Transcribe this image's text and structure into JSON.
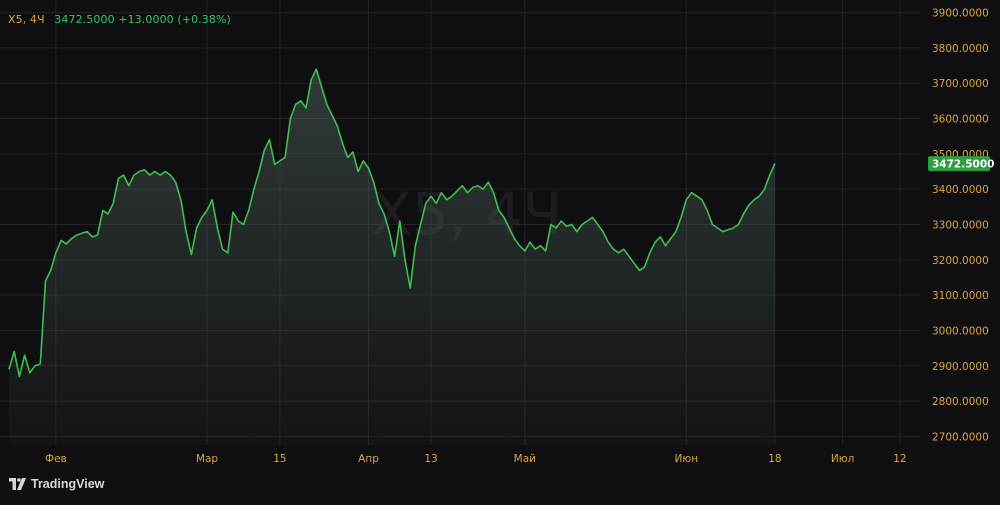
{
  "legend": {
    "symbol": "X5, 4Ч",
    "values": "3472.5000  +13.0000 (+0.38%)"
  },
  "watermark": "X5, 4Ч",
  "brand": {
    "name": "TradingView",
    "icon": "tradingview-logo-icon"
  },
  "colors": {
    "background": "#0f0f11",
    "line": "#3fbf4d",
    "price_label_bg": "#2e9e3e",
    "price_axis_text": "#d9a640",
    "time_axis_text": "#d9a640",
    "grid": "#222227",
    "symbol_text": "#d8a33a",
    "change_text": "#34c759"
  },
  "chart_data": {
    "type": "area",
    "interval": "4Ч",
    "last_price_label": "3472.5000",
    "ylim": [
      2670,
      3930
    ],
    "y_ticks": [
      2700,
      2800,
      2900,
      3000,
      3100,
      3200,
      3300,
      3400,
      3500,
      3600,
      3700,
      3800,
      3900
    ],
    "y_tick_labels": [
      "2700.0000",
      "2800.0000",
      "2900.0000",
      "3000.0000",
      "3100.0000",
      "3200.0000",
      "3300.0000",
      "3400.0000",
      "3500.0000",
      "3600.0000",
      "3700.0000",
      "3800.0000",
      "3900.0000"
    ],
    "x_domain": [
      "2024-01-23",
      "2024-07-17"
    ],
    "x_ticks": [
      {
        "date": "2024-02-01",
        "label": "Фев"
      },
      {
        "date": "2024-03-01",
        "label": "Мар"
      },
      {
        "date": "2024-03-15",
        "label": "15"
      },
      {
        "date": "2024-04-01",
        "label": "Апр"
      },
      {
        "date": "2024-04-13",
        "label": "13"
      },
      {
        "date": "2024-05-01",
        "label": "Май"
      },
      {
        "date": "2024-06-01",
        "label": "Июн"
      },
      {
        "date": "2024-06-18",
        "label": "18"
      },
      {
        "date": "2024-07-01",
        "label": "Июл"
      },
      {
        "date": "2024-07-12",
        "label": "12"
      }
    ],
    "grid": true,
    "series": [
      {
        "points": [
          [
            "2024-01-23",
            2890
          ],
          [
            "2024-01-24",
            2940
          ],
          [
            "2024-01-25",
            2870
          ],
          [
            "2024-01-26",
            2930
          ],
          [
            "2024-01-27",
            2880
          ],
          [
            "2024-01-28",
            2900
          ],
          [
            "2024-01-29",
            2905
          ],
          [
            "2024-01-30",
            3140
          ],
          [
            "2024-01-31",
            3170
          ],
          [
            "2024-02-01",
            3220
          ],
          [
            "2024-02-02",
            3255
          ],
          [
            "2024-02-03",
            3245
          ],
          [
            "2024-02-04",
            3260
          ],
          [
            "2024-02-05",
            3270
          ],
          [
            "2024-02-06",
            3275
          ],
          [
            "2024-02-07",
            3280
          ],
          [
            "2024-02-08",
            3265
          ],
          [
            "2024-02-09",
            3270
          ],
          [
            "2024-02-10",
            3340
          ],
          [
            "2024-02-11",
            3330
          ],
          [
            "2024-02-12",
            3360
          ],
          [
            "2024-02-13",
            3430
          ],
          [
            "2024-02-14",
            3440
          ],
          [
            "2024-02-15",
            3410
          ],
          [
            "2024-02-16",
            3440
          ],
          [
            "2024-02-17",
            3450
          ],
          [
            "2024-02-18",
            3455
          ],
          [
            "2024-02-19",
            3440
          ],
          [
            "2024-02-20",
            3450
          ],
          [
            "2024-02-21",
            3440
          ],
          [
            "2024-02-22",
            3450
          ],
          [
            "2024-02-23",
            3440
          ],
          [
            "2024-02-24",
            3420
          ],
          [
            "2024-02-25",
            3370
          ],
          [
            "2024-02-26",
            3280
          ],
          [
            "2024-02-27",
            3215
          ],
          [
            "2024-02-28",
            3290
          ],
          [
            "2024-02-29",
            3320
          ],
          [
            "2024-03-01",
            3340
          ],
          [
            "2024-03-02",
            3370
          ],
          [
            "2024-03-03",
            3290
          ],
          [
            "2024-03-04",
            3230
          ],
          [
            "2024-03-05",
            3220
          ],
          [
            "2024-03-06",
            3335
          ],
          [
            "2024-03-07",
            3310
          ],
          [
            "2024-03-08",
            3300
          ],
          [
            "2024-03-09",
            3340
          ],
          [
            "2024-03-10",
            3400
          ],
          [
            "2024-03-11",
            3450
          ],
          [
            "2024-03-12",
            3510
          ],
          [
            "2024-03-13",
            3540
          ],
          [
            "2024-03-14",
            3470
          ],
          [
            "2024-03-15",
            3480
          ],
          [
            "2024-03-16",
            3490
          ],
          [
            "2024-03-17",
            3600
          ],
          [
            "2024-03-18",
            3640
          ],
          [
            "2024-03-19",
            3650
          ],
          [
            "2024-03-20",
            3630
          ],
          [
            "2024-03-21",
            3710
          ],
          [
            "2024-03-22",
            3740
          ],
          [
            "2024-03-23",
            3690
          ],
          [
            "2024-03-24",
            3640
          ],
          [
            "2024-03-25",
            3610
          ],
          [
            "2024-03-26",
            3580
          ],
          [
            "2024-03-27",
            3530
          ],
          [
            "2024-03-28",
            3490
          ],
          [
            "2024-03-29",
            3505
          ],
          [
            "2024-03-30",
            3450
          ],
          [
            "2024-03-31",
            3480
          ],
          [
            "2024-04-01",
            3460
          ],
          [
            "2024-04-02",
            3420
          ],
          [
            "2024-04-03",
            3360
          ],
          [
            "2024-04-04",
            3330
          ],
          [
            "2024-04-05",
            3280
          ],
          [
            "2024-04-06",
            3210
          ],
          [
            "2024-04-07",
            3310
          ],
          [
            "2024-04-08",
            3200
          ],
          [
            "2024-04-09",
            3120
          ],
          [
            "2024-04-10",
            3240
          ],
          [
            "2024-04-11",
            3300
          ],
          [
            "2024-04-12",
            3360
          ],
          [
            "2024-04-13",
            3380
          ],
          [
            "2024-04-14",
            3360
          ],
          [
            "2024-04-15",
            3390
          ],
          [
            "2024-04-16",
            3370
          ],
          [
            "2024-04-17",
            3380
          ],
          [
            "2024-04-18",
            3395
          ],
          [
            "2024-04-19",
            3410
          ],
          [
            "2024-04-20",
            3390
          ],
          [
            "2024-04-21",
            3405
          ],
          [
            "2024-04-22",
            3410
          ],
          [
            "2024-04-23",
            3400
          ],
          [
            "2024-04-24",
            3420
          ],
          [
            "2024-04-25",
            3390
          ],
          [
            "2024-04-26",
            3340
          ],
          [
            "2024-04-27",
            3320
          ],
          [
            "2024-04-28",
            3290
          ],
          [
            "2024-04-29",
            3260
          ],
          [
            "2024-04-30",
            3240
          ],
          [
            "2024-05-01",
            3225
          ],
          [
            "2024-05-02",
            3250
          ],
          [
            "2024-05-03",
            3230
          ],
          [
            "2024-05-04",
            3240
          ],
          [
            "2024-05-05",
            3225
          ],
          [
            "2024-05-06",
            3300
          ],
          [
            "2024-05-07",
            3290
          ],
          [
            "2024-05-08",
            3310
          ],
          [
            "2024-05-09",
            3295
          ],
          [
            "2024-05-10",
            3300
          ],
          [
            "2024-05-11",
            3280
          ],
          [
            "2024-05-12",
            3300
          ],
          [
            "2024-05-13",
            3310
          ],
          [
            "2024-05-14",
            3320
          ],
          [
            "2024-05-15",
            3300
          ],
          [
            "2024-05-16",
            3280
          ],
          [
            "2024-05-17",
            3250
          ],
          [
            "2024-05-18",
            3230
          ],
          [
            "2024-05-19",
            3220
          ],
          [
            "2024-05-20",
            3230
          ],
          [
            "2024-05-21",
            3210
          ],
          [
            "2024-05-22",
            3190
          ],
          [
            "2024-05-23",
            3170
          ],
          [
            "2024-05-24",
            3180
          ],
          [
            "2024-05-25",
            3220
          ],
          [
            "2024-05-26",
            3250
          ],
          [
            "2024-05-27",
            3265
          ],
          [
            "2024-05-28",
            3240
          ],
          [
            "2024-05-29",
            3260
          ],
          [
            "2024-05-30",
            3280
          ],
          [
            "2024-05-31",
            3320
          ],
          [
            "2024-06-01",
            3370
          ],
          [
            "2024-06-02",
            3390
          ],
          [
            "2024-06-03",
            3380
          ],
          [
            "2024-06-04",
            3370
          ],
          [
            "2024-06-05",
            3340
          ],
          [
            "2024-06-06",
            3300
          ],
          [
            "2024-06-07",
            3290
          ],
          [
            "2024-06-08",
            3280
          ],
          [
            "2024-06-09",
            3285
          ],
          [
            "2024-06-10",
            3290
          ],
          [
            "2024-06-11",
            3300
          ],
          [
            "2024-06-12",
            3330
          ],
          [
            "2024-06-13",
            3355
          ],
          [
            "2024-06-14",
            3370
          ],
          [
            "2024-06-15",
            3380
          ],
          [
            "2024-06-16",
            3400
          ],
          [
            "2024-06-17",
            3440
          ],
          [
            "2024-06-18",
            3472.5
          ]
        ]
      }
    ]
  }
}
